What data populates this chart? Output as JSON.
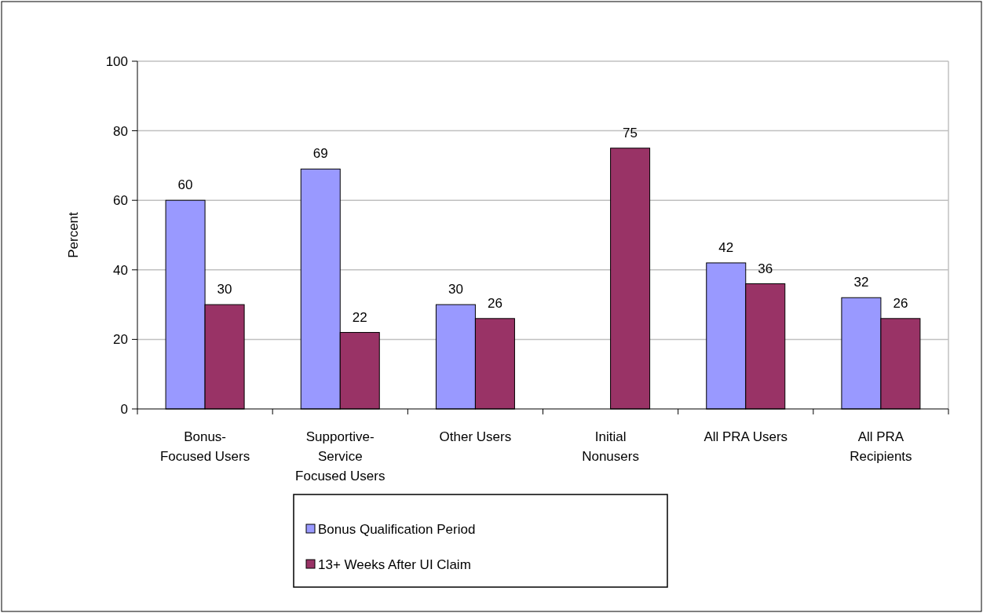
{
  "chart_data": {
    "type": "bar",
    "ylabel": "Percent",
    "categories": [
      "Bonus-\nFocused Users",
      "Supportive-\nService\nFocused Users",
      "Other Users",
      "Initial\nNonusers",
      "All PRA Users",
      "All PRA\nRecipients"
    ],
    "series": [
      {
        "name": "Bonus Qualification Period",
        "color": "#9999ff",
        "values": [
          60,
          69,
          30,
          null,
          42,
          32
        ]
      },
      {
        "name": "13+ Weeks After UI Claim",
        "color": "#993366",
        "values": [
          30,
          22,
          26,
          75,
          36,
          26
        ]
      }
    ],
    "ylim": [
      0,
      100
    ],
    "yticks": [
      0,
      20,
      40,
      60,
      80,
      100
    ],
    "grid": "y",
    "legend": "bottom",
    "data_labels": true
  }
}
